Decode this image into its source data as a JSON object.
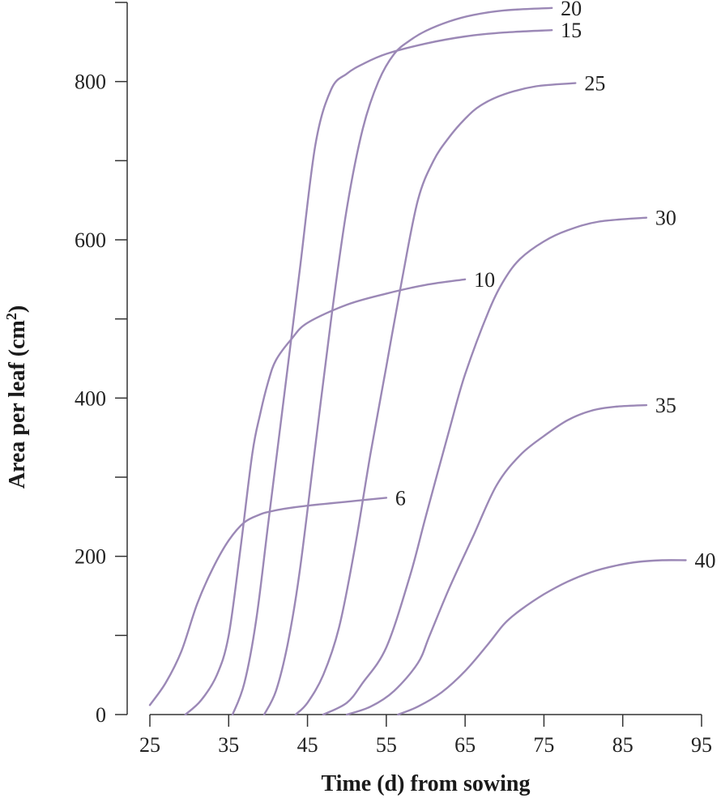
{
  "chart_data": {
    "type": "line",
    "title": "",
    "xlabel": "Time (d) from sowing",
    "ylabel_main": "Area per leaf (cm",
    "ylabel_sup": "2",
    "ylabel_end": ")",
    "xlim": [
      25,
      95
    ],
    "ylim": [
      0,
      900
    ],
    "xticks": [
      25,
      35,
      45,
      55,
      65,
      75,
      85,
      95
    ],
    "yticks": [
      0,
      100,
      200,
      300,
      400,
      500,
      600,
      700,
      800,
      900
    ],
    "ytick_labels": [
      0,
      200,
      400,
      600,
      800
    ],
    "grid": false,
    "line_color": "#9b88b6",
    "series": [
      {
        "name": "6",
        "x": [
          25,
          27,
          29,
          31,
          33,
          35,
          37,
          39,
          40,
          42,
          45,
          50,
          55
        ],
        "y": [
          12,
          40,
          80,
          140,
          185,
          220,
          243,
          253,
          256,
          260,
          264,
          269,
          274
        ]
      },
      {
        "name": "10",
        "x": [
          29.5,
          31.5,
          33.5,
          35,
          36.5,
          38,
          39,
          40,
          41,
          43,
          45,
          50,
          55,
          60,
          65
        ],
        "y": [
          0,
          18,
          50,
          100,
          210,
          330,
          380,
          420,
          448,
          475,
          495,
          518,
          532,
          543,
          550
        ]
      },
      {
        "name": "15",
        "x": [
          35.5,
          37,
          38.5,
          40,
          42,
          44,
          46,
          48,
          50,
          52,
          55,
          60,
          65,
          70,
          76
        ],
        "y": [
          0,
          40,
          120,
          240,
          400,
          560,
          720,
          790,
          810,
          822,
          835,
          848,
          857,
          862,
          865
        ]
      },
      {
        "name": "20",
        "x": [
          39.5,
          41,
          42.5,
          44,
          46,
          48,
          50,
          52,
          54,
          56,
          58,
          60,
          63,
          66,
          70,
          76
        ],
        "y": [
          0,
          30,
          90,
          180,
          340,
          500,
          640,
          740,
          800,
          835,
          852,
          864,
          876,
          884,
          890,
          893
        ]
      },
      {
        "name": "25",
        "x": [
          43.5,
          45,
          47,
          49,
          51,
          53,
          55,
          57,
          59,
          61,
          63,
          65,
          67,
          70,
          74,
          79
        ],
        "y": [
          0,
          15,
          50,
          110,
          210,
          330,
          440,
          550,
          650,
          700,
          730,
          753,
          770,
          784,
          794,
          798
        ]
      },
      {
        "name": "30",
        "x": [
          47,
          50,
          52,
          55,
          58,
          60,
          63,
          65,
          68,
          70,
          72,
          75,
          78,
          82,
          88
        ],
        "y": [
          0,
          15,
          40,
          85,
          175,
          250,
          360,
          430,
          510,
          550,
          576,
          598,
          612,
          623,
          628
        ]
      },
      {
        "name": "35",
        "x": [
          50,
          53,
          56,
          59,
          60.5,
          63,
          66,
          69,
          72,
          75,
          78,
          81,
          84,
          88
        ],
        "y": [
          0,
          10,
          30,
          65,
          100,
          160,
          225,
          290,
          328,
          352,
          372,
          384,
          389,
          391
        ]
      },
      {
        "name": "40",
        "x": [
          56.5,
          59,
          62,
          65,
          68,
          70,
          72,
          75,
          78,
          81,
          84,
          87,
          90,
          93
        ],
        "y": [
          0,
          10,
          28,
          55,
          90,
          115,
          132,
          152,
          168,
          180,
          188,
          193,
          195,
          195
        ]
      }
    ]
  }
}
